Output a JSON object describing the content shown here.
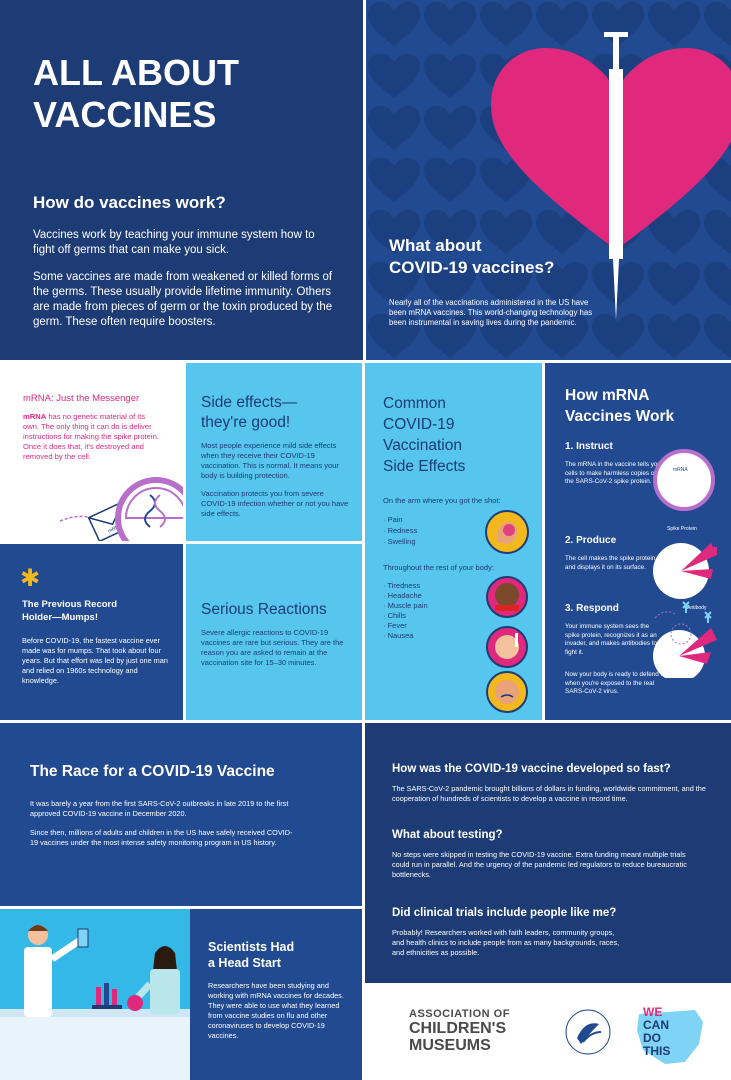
{
  "header": {
    "title_line1": "ALL ABOUT",
    "title_line2": "VACCINES",
    "question": "How do vaccines work?",
    "para1": "Vaccines work by teaching your immune system how to fight off germs that can make you sick.",
    "para2": "Some vaccines are made from weakened or killed forms of the germs. These usually provide lifetime immunity. Others are made from pieces of germ or the toxin produced by the germ. These often require boosters."
  },
  "covid": {
    "title_line1": "What about",
    "title_line2": "COVID-19 vaccines?",
    "body": "Nearly all of the vaccinations administered in the US have been mRNA vaccines. This world-changing technology has been instrumental in saving lives during the pandemic."
  },
  "mrna": {
    "title": "mRNA: Just the Messenger",
    "bold": "mRNA",
    "body": " has no genetic material of its own. The only thing it can do is deliver instructions for making the spike protein. Once it does that, it's destroyed and removed by the cell.",
    "envelope_label": "mRNA"
  },
  "side_effects": {
    "title_line1": "Side effects—",
    "title_line2": "they're good!",
    "para1": "Most people experience mild side effects when they receive their COVID-19 vaccination. This is normal. It means your body is building protection.",
    "para2": "Vaccination protects you from severe COVID-19 infection whether or not you have side effects."
  },
  "common": {
    "title_line1": "Common",
    "title_line2": "COVID-19",
    "title_line3": "Vaccination",
    "title_line4": "Side Effects",
    "arm_label": "On the arm where you got the shot:",
    "arm_items": [
      "Pain",
      "Redness",
      "Swelling"
    ],
    "body_label": "Throughout the rest of your body:",
    "body_items": [
      "Tiredness",
      "Headache",
      "Muscle pain",
      "Chills",
      "Fever",
      "Nausea"
    ]
  },
  "how_mrna": {
    "title_line1": "How mRNA",
    "title_line2": "Vaccines Work",
    "steps": [
      {
        "title": "1. Instruct",
        "body": "The mRNA in the vaccine tells your cells to make harmless copies of the SARS-CoV-2 spike protein."
      },
      {
        "title": "2. Produce",
        "body": "The cell makes the spike protein and displays it on its surface."
      },
      {
        "title": "3. Respond",
        "body": "Your immune system sees the spike protein, recognizes it as an invader, and makes antibodies to fight it."
      }
    ],
    "closing": "Now your body is ready to defend itself when you're exposed to the real SARS-CoV-2 virus.",
    "label_mrna": "mRNA",
    "label_spike": "Spike Protein",
    "label_antibody": "Antibody"
  },
  "record": {
    "title_line1": "The Previous Record",
    "title_line2": "Holder—Mumps!",
    "body": "Before COVID-19, the fastest vaccine ever made was for mumps. That took about four years. But that effort was led by just one man and relied on 1960s technology and knowledge."
  },
  "serious": {
    "title": "Serious Reactions",
    "body": "Severe allergic reactions to COVID-19 vaccines are rare but serious.  They are the reason you are asked to remain at the vaccination site for 15–30 minutes."
  },
  "race": {
    "title": "The Race for a COVID-19 Vaccine",
    "para1": "It was barely a year from the first SARS-CoV-2 outbreaks in late 2019 to the first approved COVID-19 vaccine in December 2020.",
    "para2": "Since then, millions of adults and children in the US have safely received COVID-19 vaccines under the most intense safety monitoring program in US history."
  },
  "faq": [
    {
      "q": "How was the COVID-19 vaccine developed so fast?",
      "a": "The SARS-CoV-2 pandemic brought billions of dollars in funding, worldwide commitment, and the cooperation of hundreds of scientists to develop a vaccine in record time."
    },
    {
      "q": "What about testing?",
      "a": "No steps were skipped in testing the COVID-19 vaccine. Extra funding meant multiple trials could run in parallel. And the urgency of the pandemic led regulators to reduce bureaucratic bottlenecks."
    },
    {
      "q": "Did clinical trials include people like me?",
      "a": "Probably! Researchers worked with faith leaders, community groups, and health clinics to include people from as many backgrounds, races, and ethnicities as possible."
    }
  ],
  "scientists": {
    "title_line1": "Scientists Had",
    "title_line2": "a Head Start",
    "body": "Researchers have been studying and working with mRNA vaccines for decades. They were able to use what they learned from vaccine studies on flu and other coronaviruses to develop COVID-19 vaccines."
  },
  "logos": {
    "acm_line1": "ASSOCIATION OF",
    "acm_line2": "CHILDREN'S",
    "acm_line3": "MUSEUMS",
    "wcdt_line1": "WE",
    "wcdt_line2": "CAN",
    "wcdt_line3": "DO",
    "wcdt_line4": "THIS"
  },
  "colors": {
    "navy": "#1d3b74",
    "mid_blue": "#214a91",
    "cyan": "#34b8e8",
    "pink": "#e0287d",
    "purple": "#b86fc9",
    "yellow": "#f2b81c"
  }
}
